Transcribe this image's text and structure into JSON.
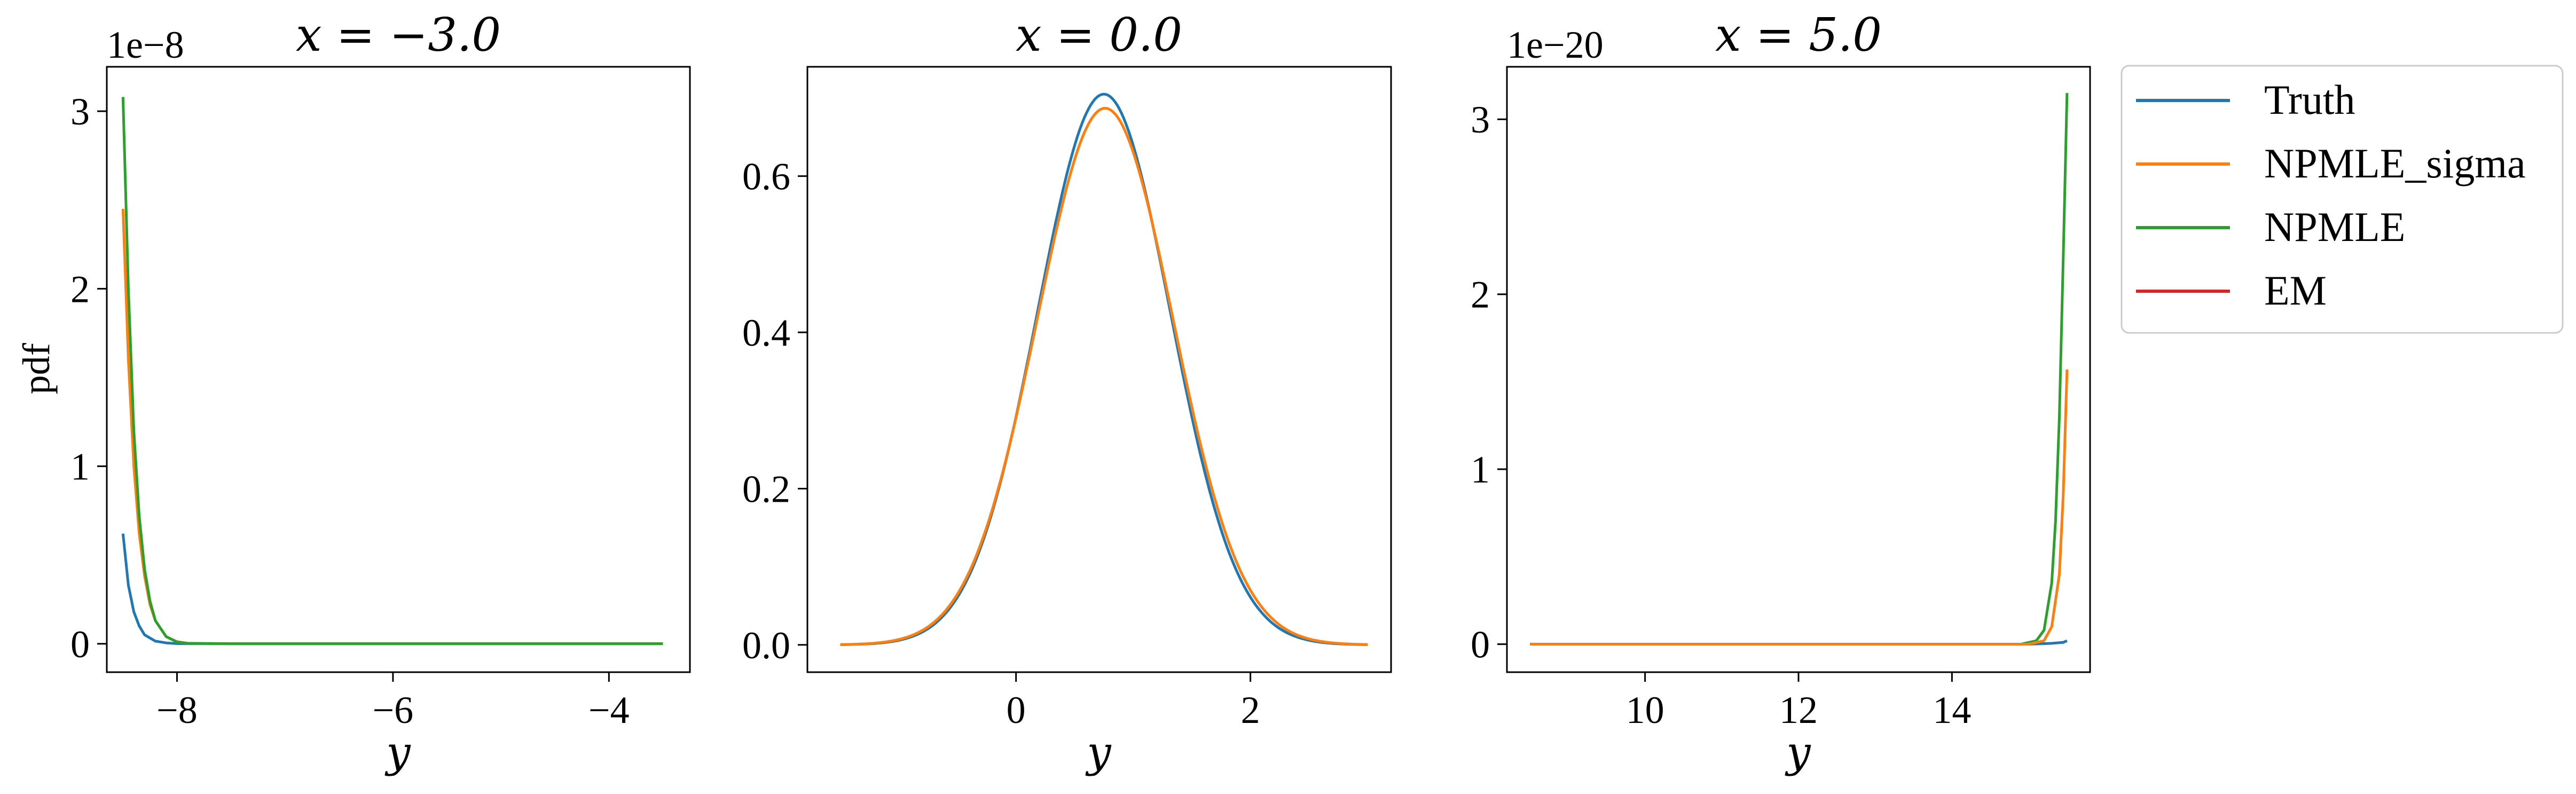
{
  "figure": {
    "ylabel": "pdf"
  },
  "legend": {
    "location": "upper-right-outside",
    "items": [
      {
        "label": "Truth",
        "color": "#1f77b4"
      },
      {
        "label": "NPMLE_sigma",
        "color": "#ff7f0e"
      },
      {
        "label": "NPMLE",
        "color": "#2ca02c"
      },
      {
        "label": "EM",
        "color": "#d62728"
      }
    ]
  },
  "chart_data": [
    {
      "type": "line",
      "title": "x = −3.0",
      "xlabel": "y",
      "ylabel": "pdf",
      "offset_text": "1e−8",
      "xlim": [
        -8.65,
        -3.25
      ],
      "ylim": [
        -0.16,
        3.25
      ],
      "xticks": [
        -8,
        -6,
        -4
      ],
      "xtick_labels": [
        "−8",
        "−6",
        "−4"
      ],
      "yticks": [
        0,
        1,
        2,
        3
      ],
      "ytick_labels": [
        "0",
        "1",
        "2",
        "3"
      ],
      "series": [
        {
          "name": "Truth",
          "color": "#1f77b4",
          "x": [
            -8.5,
            -8.45,
            -8.4,
            -8.35,
            -8.3,
            -8.2,
            -8.1,
            -8.0,
            -7.5,
            -6.5,
            -5.0,
            -3.5
          ],
          "y": [
            0.62,
            0.33,
            0.18,
            0.1,
            0.05,
            0.015,
            0.005,
            0.001,
            0,
            0,
            0,
            0
          ]
        },
        {
          "name": "NPMLE_sigma",
          "color": "#ff7f0e",
          "x": [
            -8.5,
            -8.45,
            -8.4,
            -8.35,
            -8.3,
            -8.25,
            -8.2,
            -8.1,
            -8.0,
            -7.9,
            -7.5,
            -6.5,
            -5.0,
            -3.5
          ],
          "y": [
            2.45,
            1.6,
            1.0,
            0.62,
            0.38,
            0.22,
            0.13,
            0.04,
            0.012,
            0.003,
            0,
            0,
            0,
            0
          ]
        },
        {
          "name": "NPMLE",
          "color": "#2ca02c",
          "x": [
            -8.5,
            -8.45,
            -8.4,
            -8.35,
            -8.3,
            -8.25,
            -8.2,
            -8.1,
            -8.0,
            -7.9,
            -7.5,
            -6.5,
            -5.0,
            -3.5
          ],
          "y": [
            3.08,
            2.0,
            1.2,
            0.72,
            0.42,
            0.24,
            0.13,
            0.04,
            0.01,
            0.002,
            0,
            0,
            0,
            0
          ]
        }
      ]
    },
    {
      "type": "line",
      "title": "x = 0.0",
      "xlabel": "y",
      "offset_text": "",
      "xlim": [
        -1.78,
        3.2
      ],
      "ylim": [
        -0.035,
        0.74
      ],
      "xticks": [
        0,
        2
      ],
      "xtick_labels": [
        "0",
        "2"
      ],
      "yticks": [
        0.0,
        0.2,
        0.4,
        0.6
      ],
      "ytick_labels": [
        "0.0",
        "0.2",
        "0.4",
        "0.6"
      ],
      "series": [
        {
          "name": "Truth",
          "color": "#1f77b4",
          "kind": "gaussian",
          "peak": 0.705,
          "mu": 0.75,
          "sigma": 0.565,
          "x_range": [
            -1.5,
            3.0
          ]
        },
        {
          "name": "NPMLE_sigma",
          "color": "#ff7f0e",
          "kind": "gaussian",
          "peak": 0.687,
          "mu": 0.76,
          "sigma": 0.58,
          "x_range": [
            -1.5,
            3.0
          ]
        }
      ]
    },
    {
      "type": "line",
      "title": "x = 5.0",
      "xlabel": "y",
      "offset_text": "1e−20",
      "xlim": [
        8.2,
        15.8
      ],
      "ylim": [
        -0.16,
        3.3
      ],
      "xticks": [
        10,
        12,
        14
      ],
      "xtick_labels": [
        "10",
        "12",
        "14"
      ],
      "yticks": [
        0,
        1,
        2,
        3
      ],
      "ytick_labels": [
        "0",
        "1",
        "2",
        "3"
      ],
      "series": [
        {
          "name": "Truth",
          "color": "#1f77b4",
          "x": [
            8.5,
            12.0,
            15.0,
            15.3,
            15.45,
            15.5
          ],
          "y": [
            0,
            0,
            0,
            0.005,
            0.01,
            0.02
          ]
        },
        {
          "name": "NPMLE",
          "color": "#2ca02c",
          "x": [
            8.5,
            12.0,
            14.9,
            15.1,
            15.2,
            15.3,
            15.35,
            15.4,
            15.45,
            15.5
          ],
          "y": [
            0,
            0,
            0,
            0.02,
            0.08,
            0.35,
            0.7,
            1.3,
            2.2,
            3.15
          ]
        },
        {
          "name": "NPMLE_sigma",
          "color": "#ff7f0e",
          "x": [
            8.5,
            12.0,
            15.0,
            15.2,
            15.3,
            15.4,
            15.45,
            15.5
          ],
          "y": [
            0,
            0,
            0,
            0.02,
            0.1,
            0.4,
            0.85,
            1.57
          ]
        }
      ]
    }
  ]
}
